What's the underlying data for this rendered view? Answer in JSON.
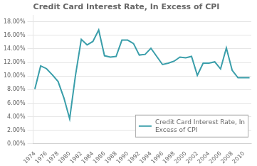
{
  "chart_data": {
    "type": "line",
    "title": "Credit Card Interest Rate, In Excess of CPI",
    "x": [
      1974,
      1975,
      1976,
      1977,
      1978,
      1979,
      1980,
      1981,
      1982,
      1983,
      1984,
      1985,
      1986,
      1987,
      1988,
      1989,
      1990,
      1991,
      1992,
      1993,
      1994,
      1995,
      1996,
      1997,
      1998,
      1999,
      2000,
      2001,
      2002,
      2003,
      2004,
      2005,
      2006,
      2007,
      2008,
      2009,
      2010,
      2011
    ],
    "series": [
      {
        "name": "Credit Card Interest Rate, In\nExcess of CPI",
        "color": "#3a9eaa",
        "values": [
          0.0808,
          0.115,
          0.111,
          0.102,
          0.092,
          0.068,
          0.037,
          0.101,
          0.154,
          0.146,
          0.151,
          0.168,
          0.13,
          0.128,
          0.129,
          0.153,
          0.153,
          0.148,
          0.131,
          0.132,
          0.141,
          0.129,
          0.117,
          0.119,
          0.122,
          0.128,
          0.127,
          0.129,
          0.101,
          0.119,
          0.119,
          0.121,
          0.1105,
          0.1415,
          0.1085,
          0.0975,
          0.0975,
          0.0975
        ]
      }
    ],
    "xlim": [
      1973.7,
      2011.3
    ],
    "xticks": [
      1974,
      1976,
      1978,
      1980,
      1982,
      1984,
      1986,
      1988,
      1990,
      1992,
      1994,
      1996,
      1998,
      2000,
      2002,
      2004,
      2006,
      2008,
      2010
    ],
    "ylim": [
      0.0,
      0.19
    ],
    "yticks": [
      {
        "value": 0.0,
        "label": "0.00%"
      },
      {
        "value": 0.02,
        "label": "2.00%"
      },
      {
        "value": 0.04,
        "label": "4.00%"
      },
      {
        "value": 0.06,
        "label": "6.00%"
      },
      {
        "value": 0.08,
        "label": "8.00%"
      },
      {
        "value": 0.1,
        "label": "10.00%"
      },
      {
        "value": 0.12,
        "label": "12.00%"
      },
      {
        "value": 0.14,
        "label": "14.00%"
      },
      {
        "value": 0.16,
        "label": "16.00%"
      },
      {
        "value": 0.18,
        "label": "18.00%"
      }
    ],
    "grid": "y",
    "legend": "lower right"
  }
}
